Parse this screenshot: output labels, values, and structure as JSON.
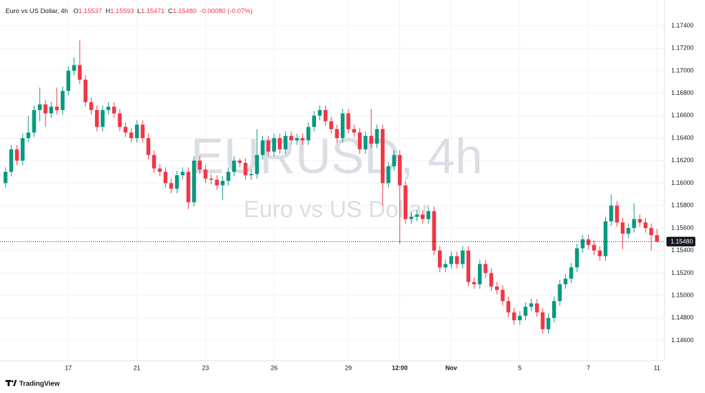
{
  "chart_data": {
    "type": "candlestick",
    "symbol": "Euro vs US Dollar, 4h",
    "ohlc_legend": [
      {
        "key": "O",
        "value": "1.15537"
      },
      {
        "key": "H",
        "value": "1.15593"
      },
      {
        "key": "L",
        "value": "1.15471"
      },
      {
        "key": "C",
        "value": "1.15480"
      }
    ],
    "change": "-0.00080 (-0.07%)",
    "watermark": "EURUSD, 4h",
    "watermark_subtitle": "Euro vs US Dollar",
    "brand": "TradingView",
    "up_color": "#089981",
    "down_color": "#f23645",
    "grid": true,
    "xlim": [
      -0.96,
      115.3
    ],
    "ylim": [
      1.1442,
      1.1758
    ],
    "yticks": [
      {
        "value": 1.146,
        "label": "1.14600"
      },
      {
        "value": 1.148,
        "label": "1.14800"
      },
      {
        "value": 1.15,
        "label": "1.15000"
      },
      {
        "value": 1.152,
        "label": "1.15200"
      },
      {
        "value": 1.154,
        "label": "1.15400"
      },
      {
        "value": 1.156,
        "label": "1.15600"
      },
      {
        "value": 1.158,
        "label": "1.15800"
      },
      {
        "value": 1.16,
        "label": "1.16000"
      },
      {
        "value": 1.162,
        "label": "1.16200"
      },
      {
        "value": 1.164,
        "label": "1.16400"
      },
      {
        "value": 1.166,
        "label": "1.16600"
      },
      {
        "value": 1.168,
        "label": "1.16800"
      },
      {
        "value": 1.17,
        "label": "1.17000"
      },
      {
        "value": 1.172,
        "label": "1.17200"
      },
      {
        "value": 1.174,
        "label": "1.17400"
      }
    ],
    "xticks": [
      {
        "value": 11,
        "label": "17"
      },
      {
        "value": 23,
        "label": "21"
      },
      {
        "value": 35,
        "label": "23"
      },
      {
        "value": 47,
        "label": "26"
      },
      {
        "value": 60,
        "label": "29"
      },
      {
        "value": 69,
        "label": "12:00"
      },
      {
        "value": 78,
        "label": "Nov"
      },
      {
        "value": 90,
        "label": "5"
      },
      {
        "value": 102,
        "label": "7"
      },
      {
        "value": 114,
        "label": "11"
      }
    ],
    "last_price": {
      "value": 1.1548,
      "label": "1.15480"
    },
    "open": [
      1.16,
      1.161,
      1.163,
      1.162,
      1.164,
      1.1645,
      1.1665,
      1.167,
      1.1662,
      1.1668,
      1.1665,
      1.1682,
      1.17,
      1.1705,
      1.1692,
      1.1672,
      1.1665,
      1.165,
      1.1665,
      1.1668,
      1.1662,
      1.165,
      1.1645,
      1.164,
      1.1652,
      1.164,
      1.1625,
      1.1613,
      1.161,
      1.16,
      1.1595,
      1.1607,
      1.161,
      1.1583,
      1.162,
      1.1612,
      1.1604,
      1.1603,
      1.1598,
      1.1602,
      1.161,
      1.162,
      1.1618,
      1.1607,
      1.1608,
      1.1625,
      1.1638,
      1.1628,
      1.164,
      1.163,
      1.1642,
      1.1638,
      1.164,
      1.1638,
      1.165,
      1.166,
      1.1665,
      1.1655,
      1.1648,
      1.164,
      1.1662,
      1.1648,
      1.1645,
      1.163,
      1.1642,
      1.1635,
      1.1648,
      1.16,
      1.1615,
      1.1625,
      1.1598,
      1.1568,
      1.157,
      1.1572,
      1.1568,
      1.1575,
      1.154,
      1.1525,
      1.1528,
      1.1535,
      1.1528,
      1.154,
      1.1512,
      1.151,
      1.1528,
      1.152,
      1.1508,
      1.1505,
      1.1495,
      1.1485,
      1.1478,
      1.1482,
      1.149,
      1.1493,
      1.1485,
      1.147,
      1.148,
      1.1495,
      1.151,
      1.1515,
      1.1525,
      1.1542,
      1.155,
      1.1545,
      1.154,
      1.1535,
      1.1566,
      1.158,
      1.1565,
      1.1555,
      1.156,
      1.1568,
      1.1565,
      1.156,
      1.15537
    ],
    "high": [
      1.1614,
      1.1634,
      1.1634,
      1.1644,
      1.166,
      1.1669,
      1.1685,
      1.1674,
      1.1672,
      1.1685,
      1.1686,
      1.1704,
      1.1712,
      1.1727,
      1.1696,
      1.1676,
      1.1669,
      1.1669,
      1.1672,
      1.1672,
      1.1666,
      1.1654,
      1.1649,
      1.1656,
      1.1656,
      1.1644,
      1.1629,
      1.1617,
      1.1614,
      1.1604,
      1.1611,
      1.1614,
      1.1614,
      1.1624,
      1.1624,
      1.1616,
      1.1608,
      1.1607,
      1.1606,
      1.1614,
      1.1624,
      1.1622,
      1.1622,
      1.1612,
      1.1648,
      1.1642,
      1.1642,
      1.1644,
      1.1644,
      1.1646,
      1.1646,
      1.1644,
      1.1644,
      1.1654,
      1.1664,
      1.1669,
      1.1669,
      1.1659,
      1.1652,
      1.1666,
      1.1666,
      1.1652,
      1.1649,
      1.1646,
      1.1666,
      1.1652,
      1.1652,
      1.1619,
      1.1629,
      1.1629,
      1.1602,
      1.1574,
      1.1576,
      1.1576,
      1.1579,
      1.1579,
      1.1544,
      1.1532,
      1.1539,
      1.1539,
      1.1544,
      1.1544,
      1.1516,
      1.1532,
      1.1532,
      1.1524,
      1.1512,
      1.1509,
      1.1499,
      1.1489,
      1.1486,
      1.1494,
      1.1497,
      1.1497,
      1.1489,
      1.1484,
      1.1499,
      1.1514,
      1.1519,
      1.1529,
      1.1546,
      1.1554,
      1.1554,
      1.1549,
      1.1544,
      1.157,
      1.159,
      1.1584,
      1.1569,
      1.1564,
      1.1582,
      1.1572,
      1.1569,
      1.1564,
      1.15593
    ],
    "low": [
      1.1596,
      1.1606,
      1.1616,
      1.1616,
      1.1636,
      1.1641,
      1.1655,
      1.165,
      1.1658,
      1.1661,
      1.1661,
      1.1678,
      1.1696,
      1.1688,
      1.1668,
      1.1661,
      1.1646,
      1.1646,
      1.1661,
      1.1658,
      1.1646,
      1.1641,
      1.1636,
      1.1636,
      1.1636,
      1.1621,
      1.1609,
      1.1606,
      1.1596,
      1.1591,
      1.1591,
      1.1603,
      1.1577,
      1.1579,
      1.1608,
      1.16,
      1.1599,
      1.1594,
      1.1585,
      1.1598,
      1.1606,
      1.1614,
      1.1603,
      1.1603,
      1.1604,
      1.1621,
      1.1624,
      1.1624,
      1.1626,
      1.1626,
      1.1634,
      1.1634,
      1.1634,
      1.1634,
      1.1646,
      1.1656,
      1.1651,
      1.1644,
      1.1636,
      1.1636,
      1.1644,
      1.1641,
      1.1626,
      1.1626,
      1.1631,
      1.1631,
      1.158,
      1.1596,
      1.1611,
      1.1546,
      1.1564,
      1.1564,
      1.1566,
      1.1564,
      1.1564,
      1.1536,
      1.1521,
      1.1521,
      1.1524,
      1.1524,
      1.1524,
      1.1508,
      1.1506,
      1.1506,
      1.1516,
      1.1504,
      1.1501,
      1.1491,
      1.1481,
      1.1474,
      1.1474,
      1.1478,
      1.1486,
      1.1481,
      1.1466,
      1.1466,
      1.1476,
      1.1491,
      1.1506,
      1.1511,
      1.1521,
      1.1538,
      1.1541,
      1.1536,
      1.1531,
      1.1531,
      1.1562,
      1.1561,
      1.1541,
      1.1551,
      1.1556,
      1.1561,
      1.1556,
      1.154,
      1.15471
    ],
    "close": [
      1.161,
      1.163,
      1.162,
      1.164,
      1.1645,
      1.1665,
      1.167,
      1.1662,
      1.1668,
      1.1665,
      1.1682,
      1.17,
      1.1705,
      1.1692,
      1.1672,
      1.1665,
      1.165,
      1.1665,
      1.1668,
      1.1662,
      1.165,
      1.1645,
      1.164,
      1.1652,
      1.164,
      1.1625,
      1.1613,
      1.161,
      1.16,
      1.1595,
      1.1607,
      1.161,
      1.1583,
      1.162,
      1.1612,
      1.1604,
      1.1603,
      1.1598,
      1.1602,
      1.161,
      1.162,
      1.1618,
      1.1607,
      1.1608,
      1.1625,
      1.1638,
      1.1628,
      1.164,
      1.163,
      1.1642,
      1.1638,
      1.164,
      1.1638,
      1.165,
      1.166,
      1.1665,
      1.1655,
      1.1648,
      1.164,
      1.1662,
      1.1648,
      1.1645,
      1.163,
      1.1642,
      1.1635,
      1.1648,
      1.16,
      1.1615,
      1.1625,
      1.1598,
      1.1568,
      1.157,
      1.1572,
      1.1568,
      1.1575,
      1.154,
      1.1525,
      1.1528,
      1.1535,
      1.1528,
      1.154,
      1.1512,
      1.151,
      1.1528,
      1.152,
      1.1508,
      1.1505,
      1.1495,
      1.1485,
      1.1478,
      1.1482,
      1.149,
      1.1493,
      1.1485,
      1.147,
      1.148,
      1.1495,
      1.151,
      1.1515,
      1.1525,
      1.1542,
      1.155,
      1.1545,
      1.154,
      1.1535,
      1.1566,
      1.158,
      1.1565,
      1.1555,
      1.156,
      1.1568,
      1.1565,
      1.156,
      1.15537,
      1.1548
    ]
  }
}
